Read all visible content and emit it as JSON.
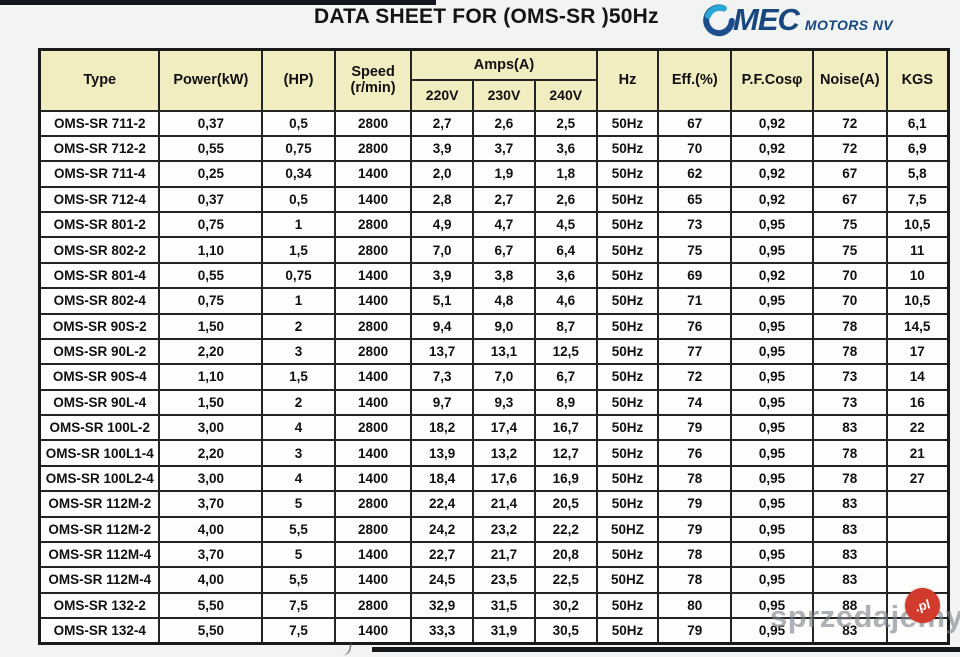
{
  "page": {
    "title": "DATA SHEET FOR (OMS-SR )50Hz",
    "logo": {
      "mec": "MEC",
      "motors": "MOTORS NV",
      "text_color": "#17477e",
      "swirl_dark": "#1c4e8e",
      "swirl_light": "#2ba7d6"
    },
    "watermark": {
      "text": "sprzedajemy",
      "badge": ".pl",
      "badge_color": "#d23a2b"
    }
  },
  "table": {
    "headers": {
      "type": "Type",
      "power_kw": "Power(kW)",
      "hp": "(HP)",
      "speed_line1": "Speed",
      "speed_line2": "(r/min)",
      "amps": "Amps(A)",
      "v220": "220V",
      "v230": "230V",
      "v240": "240V",
      "hz": "Hz",
      "eff": "Eff.(%)",
      "pf": "P.F.Cosφ",
      "noise": "Noise(A)",
      "kgs": "KGS"
    },
    "column_keys": [
      "type",
      "power_kw",
      "hp",
      "speed_rmin",
      "amps_220v",
      "amps_230v",
      "amps_240v",
      "hz",
      "eff_pct",
      "pf_cos",
      "noise_a",
      "kgs"
    ],
    "colors": {
      "header_bg": "#f2ecc1",
      "border": "#242424"
    },
    "rows": [
      [
        "OMS-SR 711-2",
        "0,37",
        "0,5",
        "2800",
        "2,7",
        "2,6",
        "2,5",
        "50Hz",
        "67",
        "0,92",
        "72",
        "6,1"
      ],
      [
        "OMS-SR 712-2",
        "0,55",
        "0,75",
        "2800",
        "3,9",
        "3,7",
        "3,6",
        "50Hz",
        "70",
        "0,92",
        "72",
        "6,9"
      ],
      [
        "OMS-SR 711-4",
        "0,25",
        "0,34",
        "1400",
        "2,0",
        "1,9",
        "1,8",
        "50Hz",
        "62",
        "0,92",
        "67",
        "5,8"
      ],
      [
        "OMS-SR 712-4",
        "0,37",
        "0,5",
        "1400",
        "2,8",
        "2,7",
        "2,6",
        "50Hz",
        "65",
        "0,92",
        "67",
        "7,5"
      ],
      [
        "OMS-SR 801-2",
        "0,75",
        "1",
        "2800",
        "4,9",
        "4,7",
        "4,5",
        "50Hz",
        "73",
        "0,95",
        "75",
        "10,5"
      ],
      [
        "OMS-SR 802-2",
        "1,10",
        "1,5",
        "2800",
        "7,0",
        "6,7",
        "6,4",
        "50Hz",
        "75",
        "0,95",
        "75",
        "11"
      ],
      [
        "OMS-SR 801-4",
        "0,55",
        "0,75",
        "1400",
        "3,9",
        "3,8",
        "3,6",
        "50Hz",
        "69",
        "0,92",
        "70",
        "10"
      ],
      [
        "OMS-SR 802-4",
        "0,75",
        "1",
        "1400",
        "5,1",
        "4,8",
        "4,6",
        "50Hz",
        "71",
        "0,95",
        "70",
        "10,5"
      ],
      [
        "OMS-SR 90S-2",
        "1,50",
        "2",
        "2800",
        "9,4",
        "9,0",
        "8,7",
        "50Hz",
        "76",
        "0,95",
        "78",
        "14,5"
      ],
      [
        "OMS-SR 90L-2",
        "2,20",
        "3",
        "2800",
        "13,7",
        "13,1",
        "12,5",
        "50Hz",
        "77",
        "0,95",
        "78",
        "17"
      ],
      [
        "OMS-SR 90S-4",
        "1,10",
        "1,5",
        "1400",
        "7,3",
        "7,0",
        "6,7",
        "50Hz",
        "72",
        "0,95",
        "73",
        "14"
      ],
      [
        "OMS-SR 90L-4",
        "1,50",
        "2",
        "1400",
        "9,7",
        "9,3",
        "8,9",
        "50Hz",
        "74",
        "0,95",
        "73",
        "16"
      ],
      [
        "OMS-SR 100L-2",
        "3,00",
        "4",
        "2800",
        "18,2",
        "17,4",
        "16,7",
        "50Hz",
        "79",
        "0,95",
        "83",
        "22"
      ],
      [
        "OMS-SR 100L1-4",
        "2,20",
        "3",
        "1400",
        "13,9",
        "13,2",
        "12,7",
        "50Hz",
        "76",
        "0,95",
        "78",
        "21"
      ],
      [
        "OMS-SR 100L2-4",
        "3,00",
        "4",
        "1400",
        "18,4",
        "17,6",
        "16,9",
        "50Hz",
        "78",
        "0,95",
        "78",
        "27"
      ],
      [
        "OMS-SR 112M-2",
        "3,70",
        "5",
        "2800",
        "22,4",
        "21,4",
        "20,5",
        "50Hz",
        "79",
        "0,95",
        "83",
        ""
      ],
      [
        "OMS-SR 112M-2",
        "4,00",
        "5,5",
        "2800",
        "24,2",
        "23,2",
        "22,2",
        "50HZ",
        "79",
        "0,95",
        "83",
        ""
      ],
      [
        "OMS-SR 112M-4",
        "3,70",
        "5",
        "1400",
        "22,7",
        "21,7",
        "20,8",
        "50Hz",
        "78",
        "0,95",
        "83",
        ""
      ],
      [
        "OMS-SR 112M-4",
        "4,00",
        "5,5",
        "1400",
        "24,5",
        "23,5",
        "22,5",
        "50HZ",
        "78",
        "0,95",
        "83",
        ""
      ],
      [
        "OMS-SR 132-2",
        "5,50",
        "7,5",
        "2800",
        "32,9",
        "31,5",
        "30,2",
        "50Hz",
        "80",
        "0,95",
        "88",
        ""
      ],
      [
        "OMS-SR 132-4",
        "5,50",
        "7,5",
        "1400",
        "33,3",
        "31,9",
        "30,5",
        "50Hz",
        "79",
        "0,95",
        "83",
        ""
      ]
    ]
  }
}
